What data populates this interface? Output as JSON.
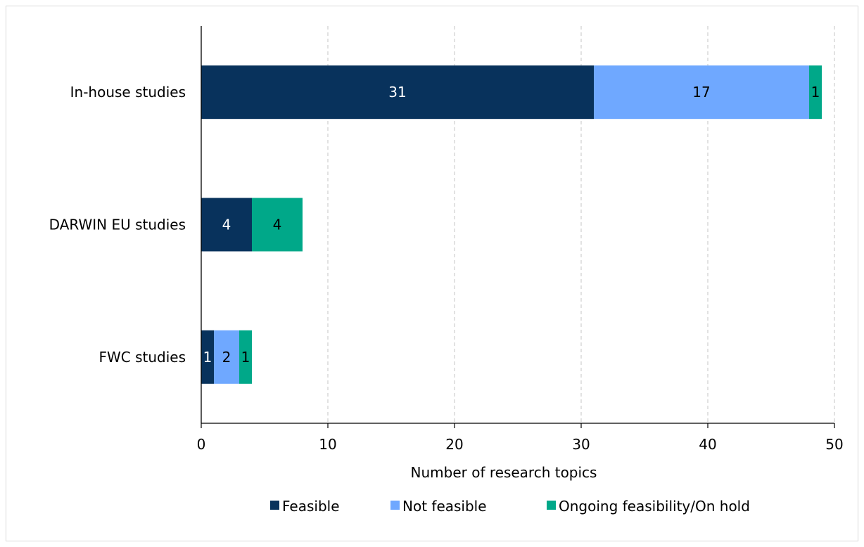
{
  "chart_data": {
    "type": "bar",
    "orientation": "horizontal",
    "stacked": true,
    "categories": [
      "In-house studies",
      "DARWIN EU studies",
      "FWC studies"
    ],
    "series": [
      {
        "name": "Feasible",
        "color": "#08325c",
        "label_color": "#ffffff",
        "values": [
          31,
          4,
          1
        ]
      },
      {
        "name": "Not feasible",
        "color": "#6fa8ff",
        "label_color": "#000000",
        "values": [
          17,
          0,
          2
        ]
      },
      {
        "name": "Ongoing feasibility/On hold",
        "color": "#00a889",
        "label_color": "#000000",
        "values": [
          1,
          4,
          1
        ]
      }
    ],
    "title": "",
    "xlabel": "Number of research topics",
    "ylabel": "",
    "xlim": [
      0,
      50
    ],
    "xticks": [
      0,
      10,
      20,
      30,
      40,
      50
    ],
    "grid": "vertical dashed",
    "legend_position": "bottom",
    "data_labels": true
  }
}
